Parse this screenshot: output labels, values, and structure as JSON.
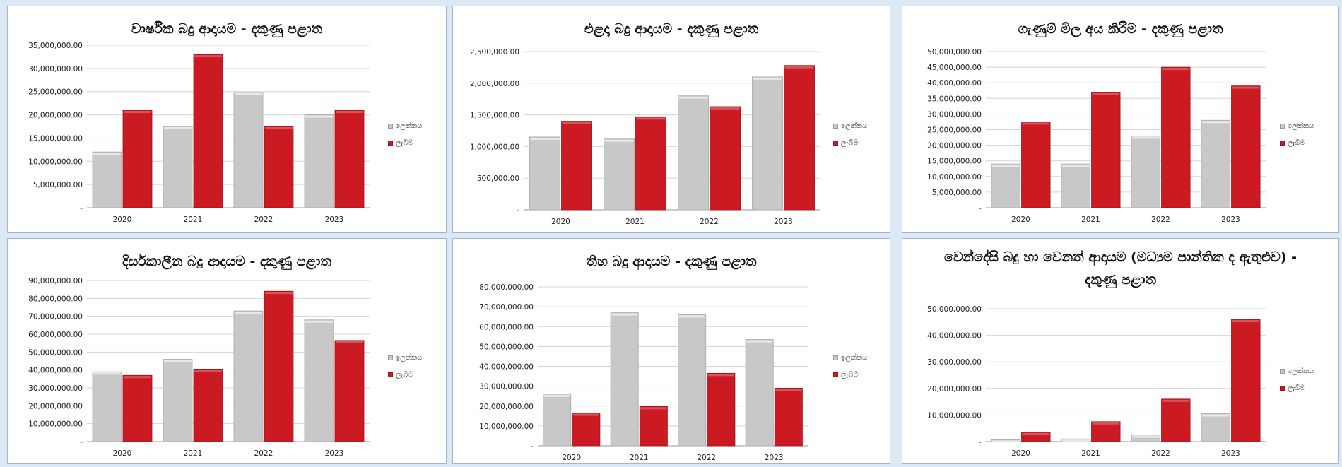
{
  "colors": {
    "target": "#c8c8c8",
    "actual": "#cc1a22",
    "background": "#dce9f5"
  },
  "legend": {
    "target_label": "ඉලක්කය",
    "actual_label": "ලැබීම"
  },
  "chart_data": [
    {
      "type": "bar",
      "title": "වාර්ෂික බදු ආදායම - දකුණු පළාත",
      "categories": [
        "2020",
        "2021",
        "2022",
        "2023"
      ],
      "ylim": [
        0,
        35000000
      ],
      "yticks": [
        "-",
        "5,000,000.00",
        "10,000,000.00",
        "15,000,000.00",
        "20,000,000.00",
        "25,000,000.00",
        "30,000,000.00",
        "35,000,000.00"
      ],
      "series": [
        {
          "name": "ඉලක්කය",
          "values": [
            12000000,
            17500000,
            24800000,
            20000000
          ]
        },
        {
          "name": "ලැබීම",
          "values": [
            21000000,
            33000000,
            17500000,
            21000000
          ]
        }
      ],
      "legend": "right",
      "grid": true
    },
    {
      "type": "bar",
      "title": "එළදා බදු ආදායම - දකුණු පළාත",
      "categories": [
        "2020",
        "2021",
        "2022",
        "2023"
      ],
      "ylim": [
        0,
        2500000
      ],
      "yticks": [
        "-",
        "500,000.00",
        "1,000,000.00",
        "1,500,000.00",
        "2,000,000.00",
        "2,500,000.00"
      ],
      "series": [
        {
          "name": "ඉලක්කය",
          "values": [
            1150000,
            1120000,
            1800000,
            2100000
          ]
        },
        {
          "name": "ලැබීම",
          "values": [
            1400000,
            1470000,
            1630000,
            2280000
          ]
        }
      ],
      "legend": "right",
      "grid": true
    },
    {
      "type": "bar",
      "title": "ගැණුම් මිල අය කිරීම - දකුණු පළාත",
      "categories": [
        "2020",
        "2021",
        "2022",
        "2023"
      ],
      "ylim": [
        0,
        50000000
      ],
      "yticks": [
        "-",
        "5,000,000.00",
        "10,000,000.00",
        "15,000,000.00",
        "20,000,000.00",
        "25,000,000.00",
        "30,000,000.00",
        "35,000,000.00",
        "40,000,000.00",
        "45,000,000.00",
        "50,000,000.00"
      ],
      "series": [
        {
          "name": "ඉලක්කය",
          "values": [
            14000000,
            14000000,
            23000000,
            28000000
          ]
        },
        {
          "name": "ලැබීම",
          "values": [
            27500000,
            37000000,
            45000000,
            39000000
          ]
        }
      ],
      "legend": "right",
      "grid": true
    },
    {
      "type": "bar",
      "title": "දිර්සකාලීන බදු ආදායම - දකුණු පළාත",
      "categories": [
        "2020",
        "2021",
        "2022",
        "2023"
      ],
      "ylim": [
        0,
        90000000
      ],
      "yticks": [
        "-",
        "10,000,000.00",
        "20,000,000.00",
        "30,000,000.00",
        "40,000,000.00",
        "50,000,000.00",
        "60,000,000.00",
        "70,000,000.00",
        "80,000,000.00",
        "90,000,000.00"
      ],
      "series": [
        {
          "name": "ඉලක්කය",
          "values": [
            39000000,
            46000000,
            73000000,
            68000000
          ]
        },
        {
          "name": "ලැබීම",
          "values": [
            37000000,
            40500000,
            84000000,
            56500000
          ]
        }
      ],
      "legend": "right",
      "grid": true
    },
    {
      "type": "bar",
      "title": "තිහ බදු ආදායම - දකුණු පළාත",
      "categories": [
        "2020",
        "2021",
        "2022",
        "2023"
      ],
      "ylim": [
        0,
        80000000
      ],
      "yticks": [
        "-",
        "10,000,000.00",
        "20,000,000.00",
        "30,000,000.00",
        "40,000,000.00",
        "50,000,000.00",
        "60,000,000.00",
        "70,000,000.00",
        "80,000,000.00"
      ],
      "series": [
        {
          "name": "ඉලක්කය",
          "values": [
            26000000,
            67000000,
            66000000,
            53500000
          ]
        },
        {
          "name": "ලැබීම",
          "values": [
            16500000,
            19800000,
            36500000,
            29000000
          ]
        }
      ],
      "legend": "right",
      "grid": true
    },
    {
      "type": "bar",
      "title": "වෙන්දේසි බදු හා වෙනත් ආදායම (මධ්‍යම පාන්තික ද ඇතුළුව) - දකුණු පළාත",
      "categories": [
        "2020",
        "2021",
        "2022",
        "2023"
      ],
      "ylim": [
        0,
        50000000
      ],
      "yticks": [
        "-",
        "10,000,000.00",
        "20,000,000.00",
        "30,000,000.00",
        "40,000,000.00",
        "50,000,000.00"
      ],
      "series": [
        {
          "name": "ඉලක්කය",
          "values": [
            700000,
            1000000,
            2500000,
            10500000
          ]
        },
        {
          "name": "ලැබීම",
          "values": [
            3500000,
            7500000,
            16000000,
            46000000
          ]
        }
      ],
      "legend": "right",
      "grid": true
    }
  ]
}
